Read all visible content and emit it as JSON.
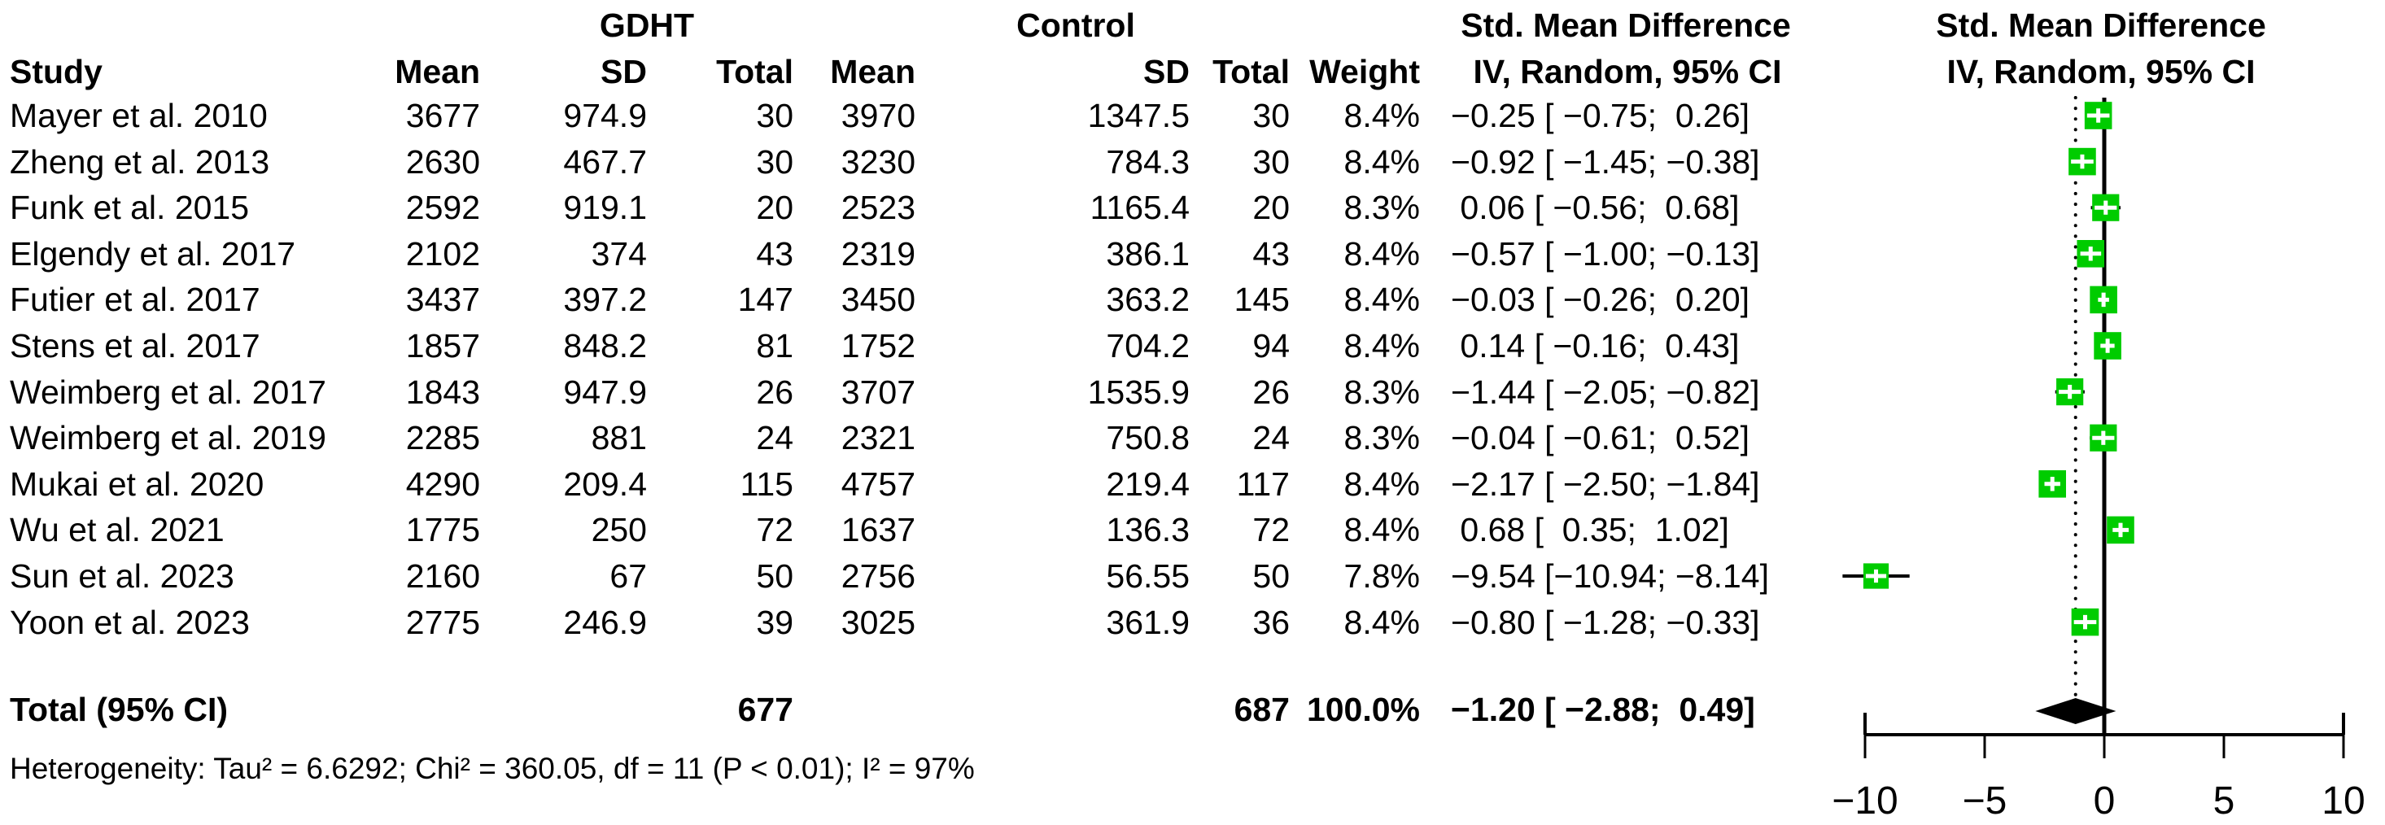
{
  "chart_data": {
    "type": "forest",
    "group_headers": {
      "gdht": "GDHT",
      "control": "Control"
    },
    "col_headers": {
      "study": "Study",
      "mean": "Mean",
      "sd": "SD",
      "total": "Total",
      "weight": "Weight",
      "smd_title": "Std. Mean Difference",
      "smd_sub": "IV, Random, 95% CI"
    },
    "plot_headers": {
      "title": "Std. Mean Difference",
      "sub": "IV, Random, 95% CI"
    },
    "studies": [
      {
        "study": "Mayer et al. 2010",
        "g_mean": "3677",
        "g_sd": "974.9",
        "g_total": "30",
        "c_mean": "3970",
        "c_sd": "1347.5",
        "c_total": "30",
        "weight": "8.4%",
        "smd": "−0.25 [ −0.75;  0.26]",
        "est": -0.25,
        "lo": -0.75,
        "hi": 0.26,
        "w": 8.4
      },
      {
        "study": "Zheng et al. 2013",
        "g_mean": "2630",
        "g_sd": "467.7",
        "g_total": "30",
        "c_mean": "3230",
        "c_sd": "784.3",
        "c_total": "30",
        "weight": "8.4%",
        "smd": "−0.92 [ −1.45; −0.38]",
        "est": -0.92,
        "lo": -1.45,
        "hi": -0.38,
        "w": 8.4
      },
      {
        "study": "Funk et al. 2015",
        "g_mean": "2592",
        "g_sd": "919.1",
        "g_total": "20",
        "c_mean": "2523",
        "c_sd": "1165.4",
        "c_total": "20",
        "weight": "8.3%",
        "smd": " 0.06 [ −0.56;  0.68]",
        "est": 0.06,
        "lo": -0.56,
        "hi": 0.68,
        "w": 8.3
      },
      {
        "study": "Elgendy et al. 2017",
        "g_mean": "2102",
        "g_sd": "374",
        "g_total": "43",
        "c_mean": "2319",
        "c_sd": "386.1",
        "c_total": "43",
        "weight": "8.4%",
        "smd": "−0.57 [ −1.00; −0.13]",
        "est": -0.57,
        "lo": -1.0,
        "hi": -0.13,
        "w": 8.4
      },
      {
        "study": "Futier et al. 2017",
        "g_mean": "3437",
        "g_sd": "397.2",
        "g_total": "147",
        "c_mean": "3450",
        "c_sd": "363.2",
        "c_total": "145",
        "weight": "8.4%",
        "smd": "−0.03 [ −0.26;  0.20]",
        "est": -0.03,
        "lo": -0.26,
        "hi": 0.2,
        "w": 8.4
      },
      {
        "study": "Stens et al. 2017",
        "g_mean": "1857",
        "g_sd": "848.2",
        "g_total": "81",
        "c_mean": "1752",
        "c_sd": "704.2",
        "c_total": "94",
        "weight": "8.4%",
        "smd": " 0.14 [ −0.16;  0.43]",
        "est": 0.14,
        "lo": -0.16,
        "hi": 0.43,
        "w": 8.4
      },
      {
        "study": "Weimberg et al. 2017",
        "g_mean": "1843",
        "g_sd": "947.9",
        "g_total": "26",
        "c_mean": "3707",
        "c_sd": "1535.9",
        "c_total": "26",
        "weight": "8.3%",
        "smd": "−1.44 [ −2.05; −0.82]",
        "est": -1.44,
        "lo": -2.05,
        "hi": -0.82,
        "w": 8.3
      },
      {
        "study": "Weimberg et al. 2019",
        "g_mean": "2285",
        "g_sd": "881",
        "g_total": "24",
        "c_mean": "2321",
        "c_sd": "750.8",
        "c_total": "24",
        "weight": "8.3%",
        "smd": "−0.04 [ −0.61;  0.52]",
        "est": -0.04,
        "lo": -0.61,
        "hi": 0.52,
        "w": 8.3
      },
      {
        "study": "Mukai et al. 2020",
        "g_mean": "4290",
        "g_sd": "209.4",
        "g_total": "115",
        "c_mean": "4757",
        "c_sd": "219.4",
        "c_total": "117",
        "weight": "8.4%",
        "smd": "−2.17 [ −2.50; −1.84]",
        "est": -2.17,
        "lo": -2.5,
        "hi": -1.84,
        "w": 8.4
      },
      {
        "study": "Wu et al. 2021",
        "g_mean": "1775",
        "g_sd": "250",
        "g_total": "72",
        "c_mean": "1637",
        "c_sd": "136.3",
        "c_total": "72",
        "weight": "8.4%",
        "smd": " 0.68 [  0.35;  1.02]",
        "est": 0.68,
        "lo": 0.35,
        "hi": 1.02,
        "w": 8.4
      },
      {
        "study": "Sun et al. 2023",
        "g_mean": "2160",
        "g_sd": "67",
        "g_total": "50",
        "c_mean": "2756",
        "c_sd": "56.55",
        "c_total": "50",
        "weight": "7.8%",
        "smd": "−9.54 [−10.94; −8.14]",
        "est": -9.54,
        "lo": -10.94,
        "hi": -8.14,
        "w": 7.8
      },
      {
        "study": "Yoon et al. 2023",
        "g_mean": "2775",
        "g_sd": "246.9",
        "g_total": "39",
        "c_mean": "3025",
        "c_sd": "361.9",
        "c_total": "36",
        "weight": "8.4%",
        "smd": "−0.80 [ −1.28; −0.33]",
        "est": -0.8,
        "lo": -1.28,
        "hi": -0.33,
        "w": 8.4
      }
    ],
    "total": {
      "label": "Total (95% CI)",
      "g_total": "677",
      "c_total": "687",
      "weight": "100.0%",
      "smd": "−1.20 [ −2.88;  0.49]",
      "est": -1.2,
      "lo": -2.88,
      "hi": 0.49
    },
    "heterogeneity": "Heterogeneity: Tau² = 6.6292; Chi² = 360.05, df = 11 (P < 0.01); I² = 97%",
    "axis": {
      "min": -10,
      "max": 10,
      "ticks": [
        -10,
        -5,
        0,
        5,
        10
      ],
      "tick_labels": [
        "−10",
        "−5",
        "0",
        "5",
        "10"
      ],
      "zero_ref": 0,
      "overall_ref": -1.2
    },
    "colors": {
      "square": "#00CC00",
      "diamond": "#000000",
      "line": "#000000",
      "marker_cross": "#ffffff"
    }
  }
}
